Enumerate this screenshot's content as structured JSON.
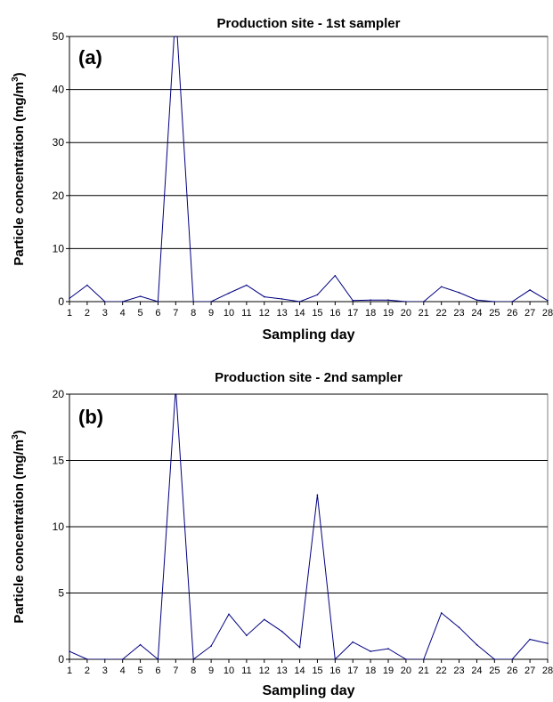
{
  "chart_data": [
    {
      "type": "line",
      "panel_label": "(a)",
      "title": "Production site - 1st sampler",
      "xlabel": "Sampling day",
      "ylabel": "Particle concentration (mg/m3)",
      "ylabel_main": "Particle concentration (mg/m",
      "ylabel_sup": "3",
      "ylabel_end": ")",
      "ylim": [
        0,
        50
      ],
      "yticks": [
        0,
        10,
        20,
        30,
        40,
        50
      ],
      "xlim": [
        1,
        28
      ],
      "x": [
        1,
        2,
        3,
        4,
        5,
        6,
        7,
        8,
        9,
        10,
        11,
        12,
        13,
        14,
        15,
        16,
        17,
        18,
        19,
        20,
        21,
        22,
        23,
        24,
        25,
        26,
        27,
        28
      ],
      "series": [
        {
          "color": "#000080",
          "values": [
            0.6,
            3.1,
            0,
            0,
            1.0,
            0,
            55,
            0,
            0,
            1.6,
            3.1,
            0.9,
            0.5,
            0,
            1.3,
            4.9,
            0.2,
            0.3,
            0.3,
            0,
            0,
            2.8,
            1.7,
            0.3,
            0,
            0,
            2.2,
            0.2
          ]
        }
      ],
      "grid": true
    },
    {
      "type": "line",
      "panel_label": "(b)",
      "title": "Production site - 2nd sampler",
      "xlabel": "Sampling day",
      "ylabel": "Particle concentration (mg/m3)",
      "ylabel_main": "Particle concentration (mg/m",
      "ylabel_sup": "3",
      "ylabel_end": ")",
      "ylim": [
        0,
        20
      ],
      "yticks": [
        0,
        5,
        10,
        15,
        20
      ],
      "xlim": [
        1,
        28
      ],
      "x": [
        1,
        2,
        3,
        4,
        5,
        6,
        7,
        8,
        9,
        10,
        11,
        12,
        13,
        14,
        15,
        16,
        17,
        18,
        19,
        20,
        21,
        22,
        23,
        24,
        25,
        26,
        27,
        28
      ],
      "series": [
        {
          "color": "#000080",
          "values": [
            0.6,
            0,
            0,
            0,
            1.1,
            0,
            20.5,
            0,
            1.0,
            3.4,
            1.8,
            3.0,
            2.1,
            0.9,
            12.4,
            0,
            1.3,
            0.6,
            0.8,
            0,
            0,
            3.5,
            2.4,
            1.1,
            0,
            0,
            1.5,
            1.2
          ]
        }
      ],
      "grid": true
    }
  ]
}
